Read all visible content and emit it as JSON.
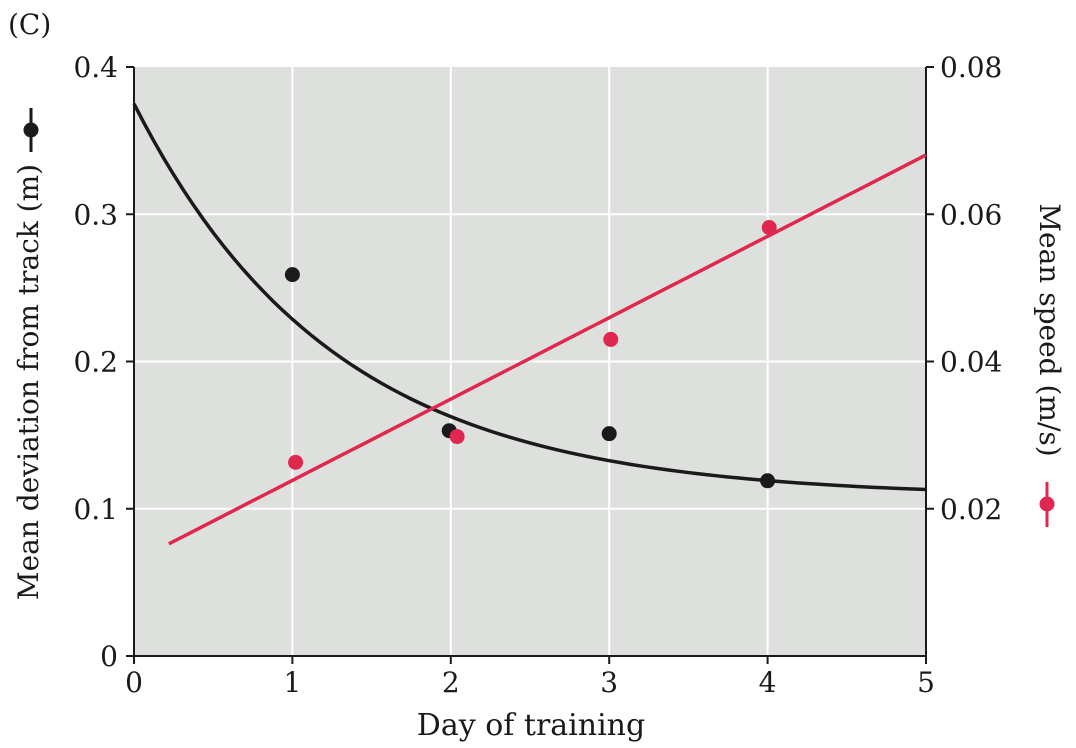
{
  "chart_data": {
    "type": "line",
    "panel_label": "(C)",
    "xlabel": "Day of training",
    "ylabel_left": "Mean deviation from track (m)",
    "ylabel_right": "Mean speed (m/s)",
    "xlim": [
      0,
      5
    ],
    "ylim_left": [
      0,
      0.4
    ],
    "ylim_right": [
      0,
      0.08
    ],
    "x_ticks": [
      "0",
      "1",
      "2",
      "3",
      "4",
      "5"
    ],
    "x_tick_values": [
      0,
      1,
      2,
      3,
      4,
      5
    ],
    "y_left_ticks": [
      "0",
      "0.1",
      "0.2",
      "0.3",
      "0.4"
    ],
    "y_left_tick_values": [
      0,
      0.1,
      0.2,
      0.3,
      0.4
    ],
    "y_right_ticks": [
      "0.02",
      "0.04",
      "0.06",
      "0.08"
    ],
    "y_right_tick_values": [
      0.02,
      0.04,
      0.06,
      0.08
    ],
    "grid": true,
    "series": [
      {
        "name": "Mean deviation from track",
        "axis": "left",
        "color": "#1a1a1a",
        "points": [
          {
            "x": 1,
            "y": 0.259
          },
          {
            "x": 1.99,
            "y": 0.153
          },
          {
            "x": 3,
            "y": 0.151
          },
          {
            "x": 4,
            "y": 0.119
          }
        ],
        "fit": {
          "type": "exponential",
          "a": 0.108,
          "b": 0.267,
          "k": 0.794,
          "x_start": 0,
          "x_end": 5
        }
      },
      {
        "name": "Mean speed",
        "axis": "right",
        "color": "#e0284f",
        "points": [
          {
            "x": 1.02,
            "y": 0.0263
          },
          {
            "x": 2.04,
            "y": 0.0298
          },
          {
            "x": 3.01,
            "y": 0.043
          },
          {
            "x": 4.01,
            "y": 0.0582
          }
        ],
        "fit": {
          "type": "linear",
          "slope": 0.01105,
          "intercept": 0.0128,
          "x_start": 0.22,
          "x_end": 5
        }
      }
    ]
  }
}
